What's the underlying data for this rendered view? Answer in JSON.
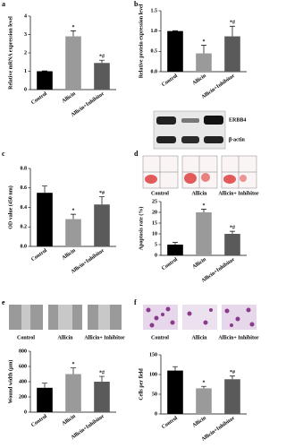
{
  "chart_data": [
    {
      "type": "bar",
      "panel": "a",
      "ylabel": "Relative mRNA expression level",
      "categories": [
        "Control",
        "Allicin",
        "Allicin+Inhibitor"
      ],
      "values": [
        1,
        2.9,
        1.45
      ],
      "errors": [
        0.02,
        0.3,
        0.15
      ],
      "significance": [
        null,
        "*",
        "*#"
      ],
      "colors": [
        "#000000",
        "#9a9a9a",
        "#5a5a5a"
      ],
      "ylim": [
        0,
        4
      ],
      "yticks": [
        0,
        1,
        2,
        3,
        4
      ]
    },
    {
      "type": "bar",
      "panel": "b",
      "ylabel": "Relative protein expression level",
      "categories": [
        "Control",
        "Allicin",
        "Allicin+Inhibitor"
      ],
      "values": [
        1,
        0.45,
        0.87
      ],
      "errors": [
        0.01,
        0.2,
        0.25
      ],
      "significance": [
        null,
        "*",
        "*#"
      ],
      "colors": [
        "#000000",
        "#9a9a9a",
        "#5a5a5a"
      ],
      "ylim": [
        0,
        1.5
      ],
      "yticks": [
        {
          "value": 0,
          "label": "0.0"
        },
        0.5,
        {
          "value": 1,
          "label": "1.0"
        },
        1.5
      ],
      "blot_labels": [
        "ERBB4",
        "β-actin"
      ]
    },
    {
      "type": "bar",
      "panel": "c",
      "ylabel": "OD value (450 nm)",
      "categories": [
        "Control",
        "Allicin",
        "Allicin+Inhibitor"
      ],
      "values": [
        0.55,
        0.28,
        0.43
      ],
      "errors": [
        0.07,
        0.05,
        0.08
      ],
      "significance": [
        null,
        "*",
        "*#"
      ],
      "colors": [
        "#000000",
        "#9a9a9a",
        "#5a5a5a"
      ],
      "ylim": [
        0,
        0.8
      ],
      "yticks": [
        {
          "value": 0,
          "label": "0.0"
        },
        0.2,
        0.4,
        0.6,
        0.8
      ]
    },
    {
      "type": "bar",
      "panel": "d",
      "ylabel": "Apoptosis rate (%)",
      "categories": [
        "Control",
        "Allicin",
        "Allicin+Inhibitor"
      ],
      "values": [
        5,
        20,
        10
      ],
      "errors": [
        1,
        1.5,
        1.2
      ],
      "significance": [
        null,
        "*",
        "*#"
      ],
      "colors": [
        "#000000",
        "#9a9a9a",
        "#5a5a5a"
      ],
      "ylim": [
        0,
        25
      ],
      "yticks": [
        0,
        5,
        10,
        15,
        20,
        25
      ],
      "image_labels": [
        "Control",
        "Allicin",
        "Allicin+ Inhibitor"
      ]
    },
    {
      "type": "bar",
      "panel": "e",
      "ylabel": "Wound width (μm)",
      "categories": [
        "Control",
        "Allicin",
        "Allicin+Inhibitor"
      ],
      "values": [
        320,
        500,
        400
      ],
      "errors": [
        60,
        80,
        70
      ],
      "significance": [
        null,
        "*",
        "*#"
      ],
      "colors": [
        "#000000",
        "#9a9a9a",
        "#5a5a5a"
      ],
      "ylim": [
        0,
        800
      ],
      "yticks": [
        0,
        200,
        400,
        600,
        800
      ],
      "image_labels": [
        "Control",
        "Allicin",
        "Allicin+ Inhibitor"
      ]
    },
    {
      "type": "bar",
      "panel": "f",
      "ylabel": "Cells per field",
      "categories": [
        "Control",
        "Allicin",
        "Allicin+Inhibitor"
      ],
      "values": [
        110,
        65,
        88
      ],
      "errors": [
        10,
        5,
        8
      ],
      "significance": [
        null,
        "*",
        "*#"
      ],
      "colors": [
        "#000000",
        "#9a9a9a",
        "#5a5a5a"
      ],
      "ylim": [
        0,
        150
      ],
      "yticks": [
        0,
        50,
        100,
        150
      ],
      "image_labels": [
        "Control",
        "Allicin",
        "Allicin+ Inhibitor"
      ]
    }
  ]
}
